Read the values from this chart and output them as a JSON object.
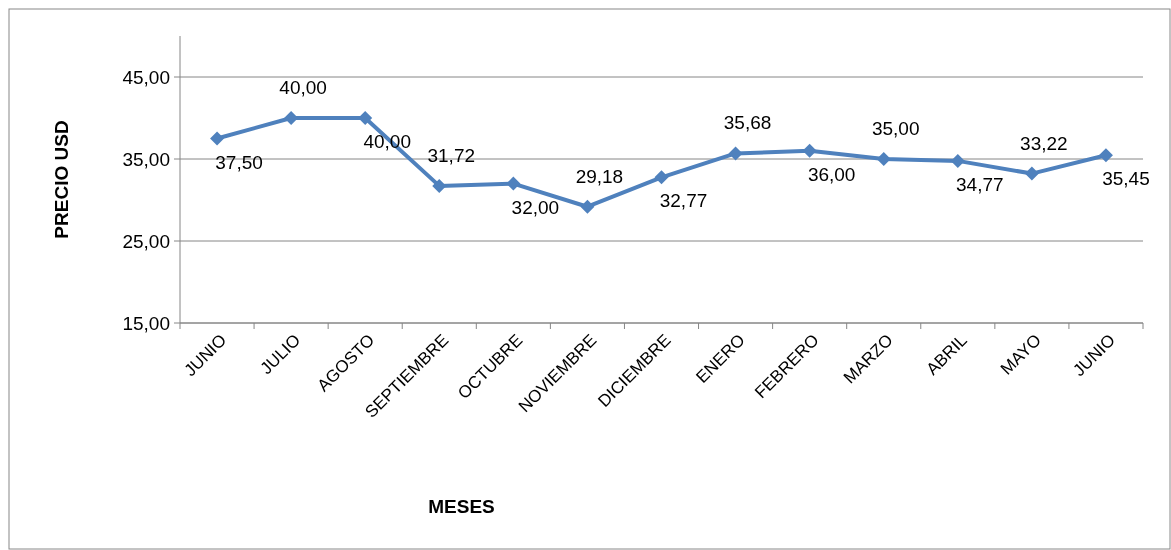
{
  "chart_data": {
    "type": "line",
    "xlabel": "MESES",
    "ylabel": "PRECIO USD",
    "categories": [
      "JUNIO",
      "JULIO",
      "AGOSTO",
      "SEPTIEMBRE",
      "OCTUBRE",
      "NOVIEMBRE",
      "DICIEMBRE",
      "ENERO",
      "FEBRERO",
      "MARZO",
      "ABRIL",
      "MAYO",
      "JUNIO"
    ],
    "series": [
      {
        "color": "#4f81bd",
        "values": [
          37.5,
          40,
          40,
          31.72,
          32,
          29.18,
          32.77,
          35.68,
          36,
          35,
          34.77,
          33.22,
          35.45
        ],
        "value_labels": [
          "37,50",
          "40,00",
          "40,00",
          "31,72",
          "32,00",
          "29,18",
          "32,77",
          "35,68",
          "36,00",
          "35,00",
          "34,77",
          "33,22",
          "35,45"
        ]
      }
    ],
    "ylim": [
      15,
      50
    ],
    "yticks": [
      {
        "value": 15,
        "label": "15,00"
      },
      {
        "value": 25,
        "label": "25,00"
      },
      {
        "value": 35,
        "label": "35,00"
      },
      {
        "value": 45,
        "label": "45,00"
      }
    ],
    "grid": "y",
    "marker": "diamond",
    "line_style": "solid"
  }
}
